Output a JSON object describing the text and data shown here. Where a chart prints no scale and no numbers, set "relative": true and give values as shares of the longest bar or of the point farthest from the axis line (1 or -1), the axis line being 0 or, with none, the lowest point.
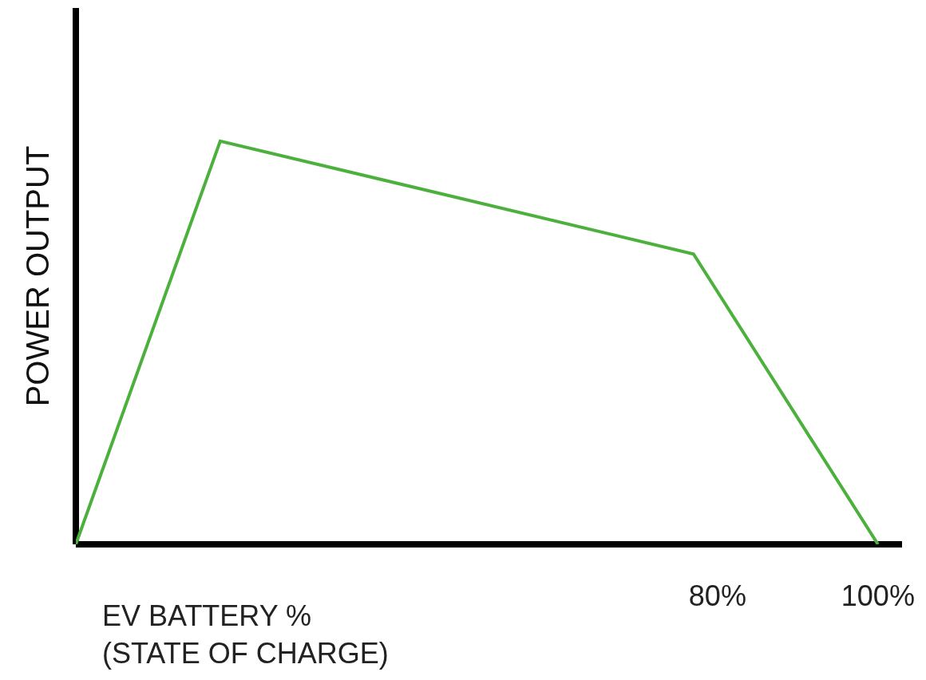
{
  "chart_data": {
    "type": "line",
    "relative": true,
    "xlabel": "EV BATTERY %\n(STATE OF CHARGE)",
    "ylabel": "POWER OUTPUT",
    "x": [
      0,
      18,
      77,
      100
    ],
    "series": [
      {
        "color": "#4cb03c",
        "values": [
          0,
          1,
          0.72,
          0
        ]
      }
    ],
    "xlim": [
      0,
      103
    ],
    "xticks": [
      {
        "value": 80,
        "label": "80%"
      },
      {
        "value": 100,
        "label": "100%"
      }
    ],
    "tick_labels": "x",
    "legend": false,
    "marker": "none",
    "line_style": "solid"
  }
}
